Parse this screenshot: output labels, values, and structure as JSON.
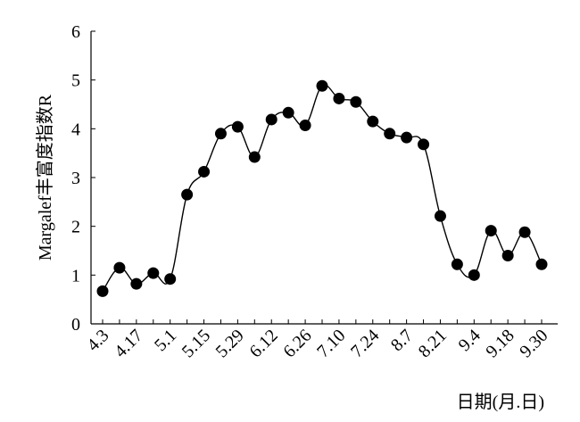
{
  "chart_data": {
    "type": "line",
    "title": "",
    "xlabel": "日期(月.日)",
    "ylabel": "Margalef丰富度指数R",
    "ylim": [
      0,
      6
    ],
    "yticks": [
      0,
      1,
      2,
      3,
      4,
      5,
      6
    ],
    "grid": false,
    "x_tick_labels": [
      "4.3",
      "4.17",
      "5.1",
      "5.15",
      "5.29",
      "6.12",
      "6.26",
      "7.10",
      "7.24",
      "8.7",
      "8.21",
      "9.4",
      "9.18",
      "9.30"
    ],
    "series": [
      {
        "values": [
          0.67,
          1.15,
          0.82,
          1.04,
          0.92,
          2.65,
          3.12,
          3.9,
          4.04,
          3.42,
          4.19,
          4.33,
          4.07,
          4.88,
          4.62,
          4.55,
          4.15,
          3.9,
          3.82,
          3.68,
          2.21,
          1.22,
          1.0,
          1.91,
          1.4,
          1.88,
          1.22
        ]
      }
    ]
  }
}
